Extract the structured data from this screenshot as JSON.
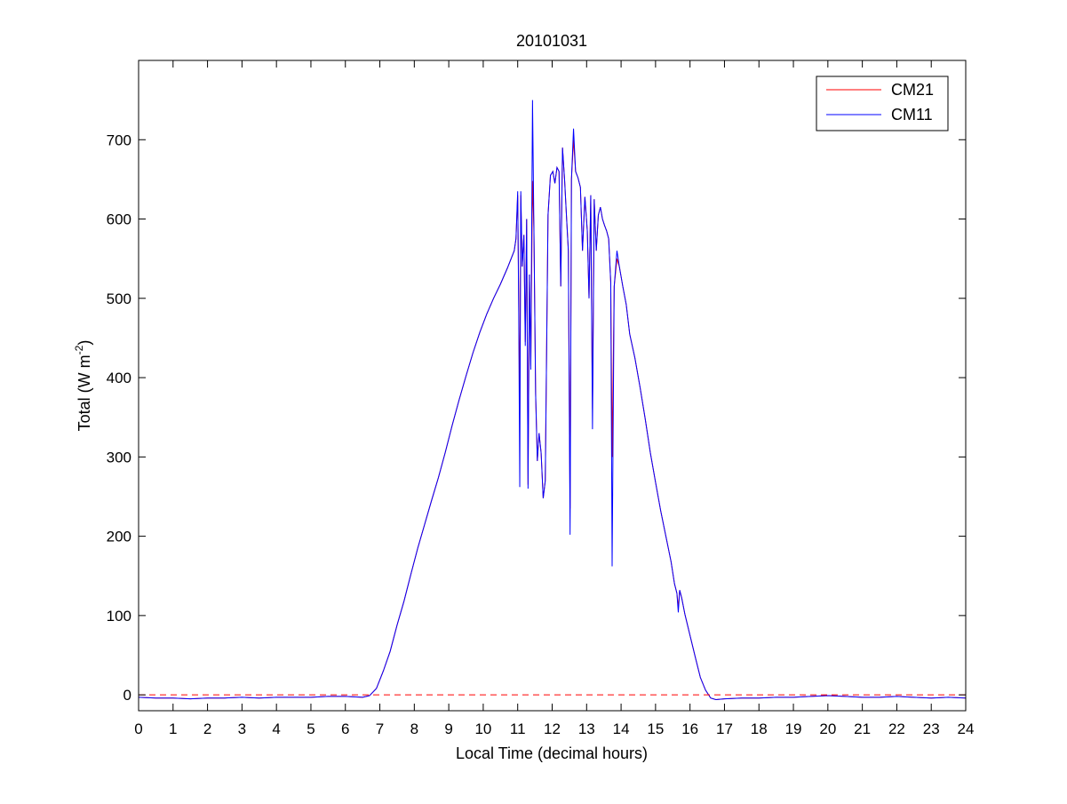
{
  "chart_data": {
    "type": "line",
    "title": "20101031",
    "xlabel": "Local Time (decimal hours)",
    "ylabel": {
      "text": "Total (W m",
      "superscript": "-2",
      "suffix": ")"
    },
    "xlim": [
      0,
      24
    ],
    "ylim": [
      -20,
      800
    ],
    "x_ticks": [
      0,
      1,
      2,
      3,
      4,
      5,
      6,
      7,
      8,
      9,
      10,
      11,
      12,
      13,
      14,
      15,
      16,
      17,
      18,
      19,
      20,
      21,
      22,
      23,
      24
    ],
    "y_ticks": [
      0,
      100,
      200,
      300,
      400,
      500,
      600,
      700
    ],
    "grid": false,
    "legend": {
      "position": "top-right"
    },
    "reference_line": {
      "y": 0,
      "style": "dashed",
      "color": "#ff0000"
    },
    "series": [
      {
        "name": "CM21",
        "color": "#ff0000",
        "points": [
          [
            0,
            -3
          ],
          [
            0.5,
            -4
          ],
          [
            1,
            -4
          ],
          [
            1.5,
            -5
          ],
          [
            2,
            -4
          ],
          [
            2.5,
            -4
          ],
          [
            3,
            -3
          ],
          [
            3.5,
            -4
          ],
          [
            4,
            -3
          ],
          [
            4.5,
            -3
          ],
          [
            5,
            -3
          ],
          [
            5.5,
            -2
          ],
          [
            6,
            -2
          ],
          [
            6.5,
            -3
          ],
          [
            6.7,
            -1
          ],
          [
            6.9,
            8
          ],
          [
            7.1,
            30
          ],
          [
            7.3,
            55
          ],
          [
            7.5,
            88
          ],
          [
            7.7,
            118
          ],
          [
            7.9,
            152
          ],
          [
            8.1,
            185
          ],
          [
            8.3,
            215
          ],
          [
            8.5,
            245
          ],
          [
            8.7,
            274
          ],
          [
            8.9,
            306
          ],
          [
            9.1,
            340
          ],
          [
            9.3,
            372
          ],
          [
            9.5,
            402
          ],
          [
            9.7,
            431
          ],
          [
            9.9,
            457
          ],
          [
            10.1,
            480
          ],
          [
            10.3,
            500
          ],
          [
            10.5,
            518
          ],
          [
            10.7,
            538
          ],
          [
            10.9,
            560
          ],
          [
            10.95,
            575
          ],
          [
            11.0,
            630
          ],
          [
            11.03,
            500
          ],
          [
            11.06,
            355
          ],
          [
            11.09,
            630
          ],
          [
            11.13,
            540
          ],
          [
            11.18,
            580
          ],
          [
            11.22,
            445
          ],
          [
            11.26,
            600
          ],
          [
            11.3,
            265
          ],
          [
            11.34,
            530
          ],
          [
            11.38,
            415
          ],
          [
            11.43,
            648
          ],
          [
            11.47,
            590
          ],
          [
            11.52,
            380
          ],
          [
            11.57,
            295
          ],
          [
            11.62,
            330
          ],
          [
            11.68,
            305
          ],
          [
            11.74,
            248
          ],
          [
            11.8,
            270
          ],
          [
            11.88,
            605
          ],
          [
            11.95,
            655
          ],
          [
            12.02,
            660
          ],
          [
            12.08,
            645
          ],
          [
            12.14,
            665
          ],
          [
            12.2,
            660
          ],
          [
            12.25,
            515
          ],
          [
            12.3,
            690
          ],
          [
            12.36,
            650
          ],
          [
            12.42,
            600
          ],
          [
            12.47,
            560
          ],
          [
            12.52,
            235
          ],
          [
            12.56,
            650
          ],
          [
            12.62,
            700
          ],
          [
            12.68,
            660
          ],
          [
            12.75,
            652
          ],
          [
            12.82,
            640
          ],
          [
            12.88,
            560
          ],
          [
            12.95,
            628
          ],
          [
            13.02,
            585
          ],
          [
            13.07,
            500
          ],
          [
            13.12,
            630
          ],
          [
            13.17,
            360
          ],
          [
            13.22,
            625
          ],
          [
            13.28,
            560
          ],
          [
            13.34,
            605
          ],
          [
            13.4,
            615
          ],
          [
            13.46,
            600
          ],
          [
            13.52,
            592
          ],
          [
            13.58,
            585
          ],
          [
            13.64,
            575
          ],
          [
            13.7,
            520
          ],
          [
            13.74,
            300
          ],
          [
            13.8,
            515
          ],
          [
            13.88,
            550
          ],
          [
            13.95,
            540
          ],
          [
            14.05,
            515
          ],
          [
            14.15,
            492
          ],
          [
            14.25,
            455
          ],
          [
            14.4,
            425
          ],
          [
            14.55,
            388
          ],
          [
            14.7,
            348
          ],
          [
            14.85,
            305
          ],
          [
            15.0,
            268
          ],
          [
            15.15,
            232
          ],
          [
            15.3,
            200
          ],
          [
            15.45,
            168
          ],
          [
            15.55,
            140
          ],
          [
            15.62,
            128
          ],
          [
            15.66,
            110
          ],
          [
            15.7,
            132
          ],
          [
            15.76,
            122
          ],
          [
            15.85,
            102
          ],
          [
            16.0,
            75
          ],
          [
            16.15,
            48
          ],
          [
            16.3,
            22
          ],
          [
            16.45,
            6
          ],
          [
            16.6,
            -4
          ],
          [
            16.75,
            -6
          ],
          [
            17.0,
            -5
          ],
          [
            17.5,
            -4
          ],
          [
            18,
            -4
          ],
          [
            18.5,
            -3
          ],
          [
            19,
            -3
          ],
          [
            19.5,
            -2
          ],
          [
            20,
            -1
          ],
          [
            20.5,
            -2
          ],
          [
            21,
            -3
          ],
          [
            21.5,
            -3
          ],
          [
            22,
            -2
          ],
          [
            22.5,
            -3
          ],
          [
            23,
            -4
          ],
          [
            23.5,
            -3
          ],
          [
            24,
            -4
          ]
        ]
      },
      {
        "name": "CM11",
        "color": "#0000ff",
        "points": [
          [
            0,
            -3
          ],
          [
            0.5,
            -4
          ],
          [
            1,
            -4
          ],
          [
            1.5,
            -5
          ],
          [
            2,
            -4
          ],
          [
            2.5,
            -4
          ],
          [
            3,
            -3
          ],
          [
            3.5,
            -4
          ],
          [
            4,
            -3
          ],
          [
            4.5,
            -3
          ],
          [
            5,
            -3
          ],
          [
            5.5,
            -2
          ],
          [
            6,
            -2
          ],
          [
            6.5,
            -3
          ],
          [
            6.7,
            -1
          ],
          [
            6.9,
            8
          ],
          [
            7.1,
            30
          ],
          [
            7.3,
            55
          ],
          [
            7.5,
            88
          ],
          [
            7.7,
            118
          ],
          [
            7.9,
            152
          ],
          [
            8.1,
            185
          ],
          [
            8.3,
            215
          ],
          [
            8.5,
            245
          ],
          [
            8.7,
            274
          ],
          [
            8.9,
            306
          ],
          [
            9.1,
            340
          ],
          [
            9.3,
            372
          ],
          [
            9.5,
            402
          ],
          [
            9.7,
            431
          ],
          [
            9.9,
            457
          ],
          [
            10.1,
            480
          ],
          [
            10.3,
            500
          ],
          [
            10.5,
            518
          ],
          [
            10.7,
            538
          ],
          [
            10.9,
            560
          ],
          [
            10.95,
            575
          ],
          [
            11.0,
            635
          ],
          [
            11.03,
            480
          ],
          [
            11.06,
            262
          ],
          [
            11.09,
            635
          ],
          [
            11.13,
            540
          ],
          [
            11.18,
            580
          ],
          [
            11.22,
            440
          ],
          [
            11.26,
            600
          ],
          [
            11.3,
            260
          ],
          [
            11.34,
            530
          ],
          [
            11.38,
            410
          ],
          [
            11.43,
            750
          ],
          [
            11.47,
            590
          ],
          [
            11.52,
            380
          ],
          [
            11.57,
            295
          ],
          [
            11.62,
            330
          ],
          [
            11.68,
            305
          ],
          [
            11.74,
            248
          ],
          [
            11.8,
            270
          ],
          [
            11.88,
            605
          ],
          [
            11.95,
            655
          ],
          [
            12.02,
            660
          ],
          [
            12.08,
            645
          ],
          [
            12.14,
            665
          ],
          [
            12.2,
            660
          ],
          [
            12.25,
            515
          ],
          [
            12.3,
            690
          ],
          [
            12.36,
            650
          ],
          [
            12.42,
            600
          ],
          [
            12.47,
            560
          ],
          [
            12.52,
            202
          ],
          [
            12.56,
            650
          ],
          [
            12.62,
            714
          ],
          [
            12.68,
            660
          ],
          [
            12.75,
            652
          ],
          [
            12.82,
            640
          ],
          [
            12.88,
            560
          ],
          [
            12.95,
            628
          ],
          [
            13.02,
            585
          ],
          [
            13.07,
            500
          ],
          [
            13.12,
            630
          ],
          [
            13.17,
            335
          ],
          [
            13.22,
            625
          ],
          [
            13.28,
            560
          ],
          [
            13.34,
            605
          ],
          [
            13.4,
            615
          ],
          [
            13.46,
            600
          ],
          [
            13.52,
            592
          ],
          [
            13.58,
            585
          ],
          [
            13.64,
            575
          ],
          [
            13.7,
            520
          ],
          [
            13.74,
            162
          ],
          [
            13.8,
            515
          ],
          [
            13.88,
            560
          ],
          [
            13.95,
            540
          ],
          [
            14.05,
            515
          ],
          [
            14.15,
            492
          ],
          [
            14.25,
            455
          ],
          [
            14.4,
            425
          ],
          [
            14.55,
            388
          ],
          [
            14.7,
            348
          ],
          [
            14.85,
            305
          ],
          [
            15.0,
            268
          ],
          [
            15.15,
            232
          ],
          [
            15.3,
            200
          ],
          [
            15.45,
            168
          ],
          [
            15.55,
            140
          ],
          [
            15.62,
            128
          ],
          [
            15.66,
            104
          ],
          [
            15.7,
            132
          ],
          [
            15.76,
            122
          ],
          [
            15.85,
            102
          ],
          [
            16.0,
            75
          ],
          [
            16.15,
            48
          ],
          [
            16.3,
            22
          ],
          [
            16.45,
            6
          ],
          [
            16.6,
            -4
          ],
          [
            16.75,
            -6
          ],
          [
            17.0,
            -5
          ],
          [
            17.5,
            -4
          ],
          [
            18,
            -4
          ],
          [
            18.5,
            -3
          ],
          [
            19,
            -3
          ],
          [
            19.5,
            -2
          ],
          [
            20,
            -1
          ],
          [
            20.5,
            -2
          ],
          [
            21,
            -3
          ],
          [
            21.5,
            -3
          ],
          [
            22,
            -2
          ],
          [
            22.5,
            -3
          ],
          [
            23,
            -4
          ],
          [
            23.5,
            -3
          ],
          [
            24,
            -4
          ]
        ]
      }
    ]
  }
}
